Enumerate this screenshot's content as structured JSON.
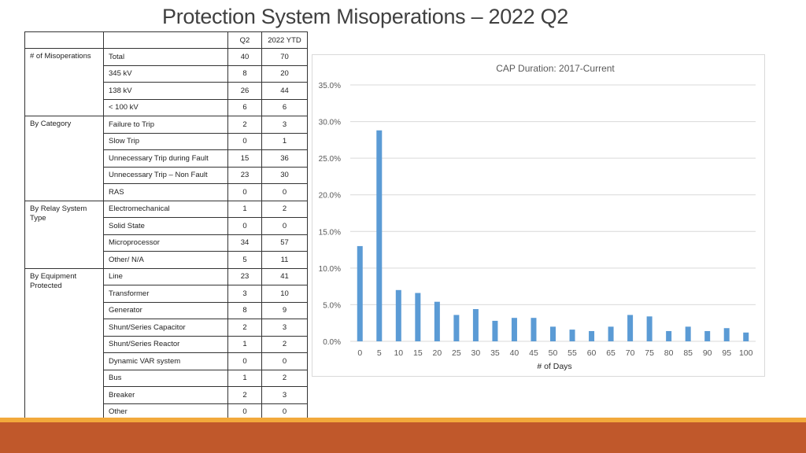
{
  "title": "Protection System Misoperations – 2022 Q2",
  "table": {
    "headers": [
      "",
      "",
      "Q2",
      "2022 YTD"
    ],
    "groups": [
      {
        "label": "# of Misoperations",
        "rows": [
          [
            "Total",
            "40",
            "70"
          ],
          [
            "345 kV",
            "8",
            "20"
          ],
          [
            "138 kV",
            "26",
            "44"
          ],
          [
            "< 100 kV",
            "6",
            "6"
          ]
        ]
      },
      {
        "label": "By Category",
        "rows": [
          [
            "Failure to Trip",
            "2",
            "3"
          ],
          [
            "Slow Trip",
            "0",
            "1"
          ],
          [
            "Unnecessary Trip during Fault",
            "15",
            "36"
          ],
          [
            "Unnecessary Trip – Non Fault",
            "23",
            "30"
          ],
          [
            "RAS",
            "0",
            "0"
          ]
        ]
      },
      {
        "label": "By Relay System Type",
        "rows": [
          [
            "Electromechanical",
            "1",
            "2"
          ],
          [
            "Solid State",
            "0",
            "0"
          ],
          [
            "Microprocessor",
            "34",
            "57"
          ],
          [
            "Other/ N/A",
            "5",
            "11"
          ]
        ]
      },
      {
        "label": "By Equipment Protected",
        "rows": [
          [
            "Line",
            "23",
            "41"
          ],
          [
            "Transformer",
            "3",
            "10"
          ],
          [
            "Generator",
            "8",
            "9"
          ],
          [
            "Shunt/Series Capacitor",
            "2",
            "3"
          ],
          [
            "Shunt/Series Reactor",
            "1",
            "2"
          ],
          [
            "Dynamic VAR system",
            "0",
            "0"
          ],
          [
            "Bus",
            "1",
            "2"
          ],
          [
            "Breaker",
            "2",
            "3"
          ],
          [
            "Other",
            "0",
            "0"
          ]
        ]
      }
    ]
  },
  "chart_data": {
    "type": "bar",
    "title": "CAP Duration: 2017-Current",
    "xlabel": "# of Days",
    "ylabel": "",
    "categories": [
      "0",
      "5",
      "10",
      "15",
      "20",
      "25",
      "30",
      "35",
      "40",
      "45",
      "50",
      "55",
      "60",
      "65",
      "70",
      "75",
      "80",
      "85",
      "90",
      "95",
      "100"
    ],
    "values": [
      13.0,
      28.8,
      7.0,
      6.6,
      5.4,
      3.6,
      4.4,
      2.8,
      3.2,
      3.2,
      2.0,
      1.6,
      1.4,
      2.0,
      3.6,
      3.4,
      1.4,
      2.0,
      1.4,
      1.8,
      1.2
    ],
    "ylim": [
      0,
      35
    ],
    "yticks": [
      "0.0%",
      "5.0%",
      "10.0%",
      "15.0%",
      "20.0%",
      "25.0%",
      "30.0%",
      "35.0%"
    ],
    "grid": true,
    "bar_color": "#5b9bd5"
  }
}
